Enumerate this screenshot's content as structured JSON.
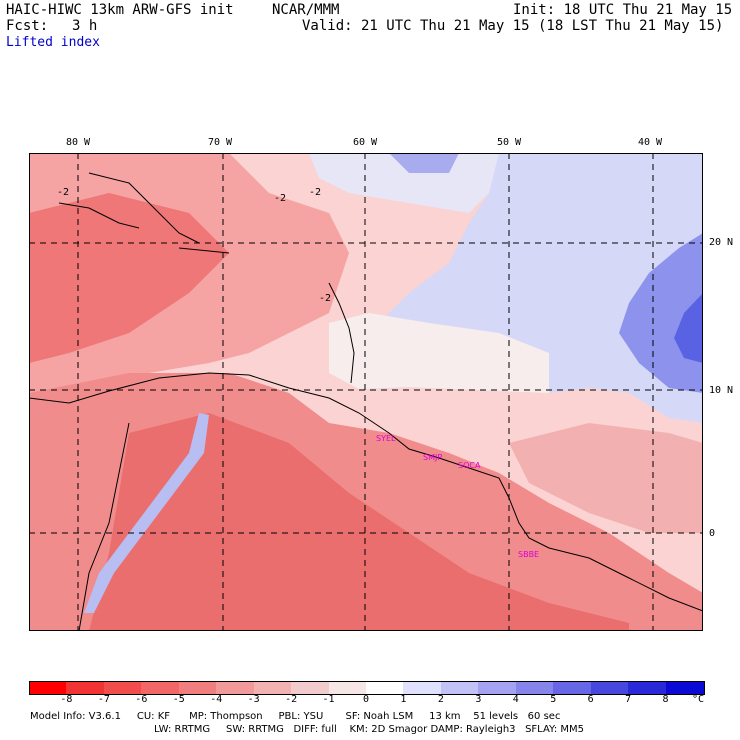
{
  "header": {
    "model": "HAIC-HIWC 13km ARW-GFS init",
    "org": "NCAR/MMM",
    "init": "Init: 18 UTC Thu 21 May 15",
    "fcst_label": "Fcst:",
    "fcst_value": "3 h",
    "valid": "Valid: 21 UTC Thu 21 May 15 (18 LST Thu 21 May 15)",
    "field": "Lifted index"
  },
  "map": {
    "lon_labels": [
      "80 W",
      "70 W",
      "60 W",
      "50 W",
      "40 W"
    ],
    "lat_labels": [
      "20 N",
      "10 N",
      "0"
    ],
    "stations": [
      "SYEL",
      "SMJP",
      "SOCA",
      "SBBE"
    ],
    "contour_labels": [
      "-2",
      "-2",
      "-2",
      "-2"
    ],
    "colors": {
      "strong_unstable": "#e63333",
      "unstable": "#f47a7a",
      "weak_unstable": "#fbc1c1",
      "neutral": "#fde6e6",
      "stable": "#c9ccf5",
      "strong_stable": "#4b57e8"
    }
  },
  "colorbar": {
    "labels": [
      "-8",
      "-7",
      "-6",
      "-5",
      "-4",
      "-3",
      "-2",
      "-1",
      "0",
      "1",
      "2",
      "3",
      "4",
      "5",
      "6",
      "7",
      "8"
    ],
    "unit": "°C",
    "colors": [
      "#ff0000",
      "#f23333",
      "#f24d4d",
      "#f26666",
      "#f27f7f",
      "#f29999",
      "#f2b2b2",
      "#f2cccc",
      "#f7e6e6",
      "#ffffff",
      "#e0e0ff",
      "#c2c2f7",
      "#a3a3f2",
      "#8585ec",
      "#6666e6",
      "#4747e0",
      "#2929da",
      "#0a0ad4"
    ]
  },
  "footer": {
    "line1": "Model Info: V3.6.1     CU: KF      MP: Thompson     PBL: YSU       SF: Noah LSM     13 km    51 levels   60 sec",
    "line2": "LW: RRTMG     SW: RRTMG   DIFF: full    KM: 2D Smagor DAMP: Rayleigh3   SFLAY: MM5"
  }
}
